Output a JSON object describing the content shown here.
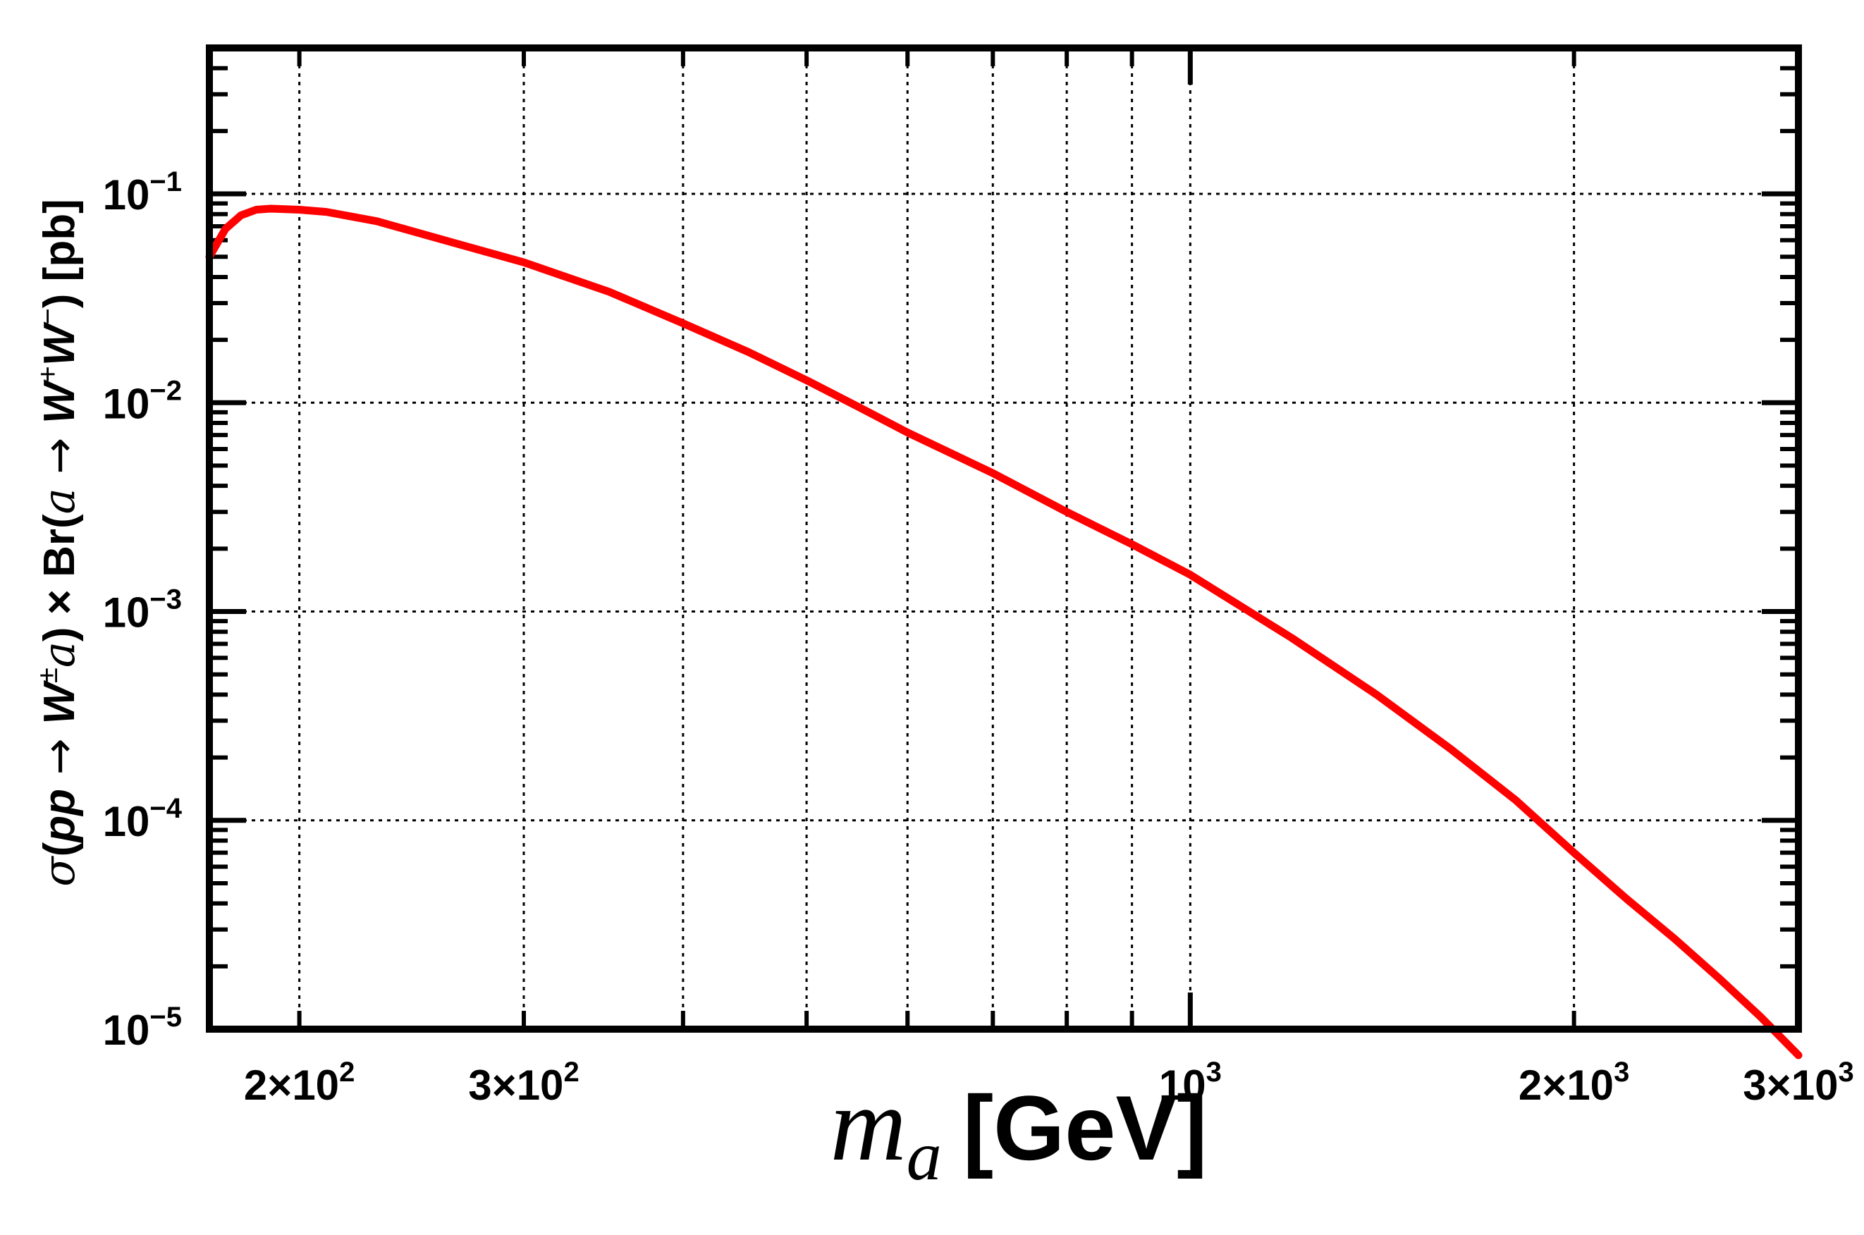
{
  "chart_data": {
    "type": "line",
    "title": "",
    "xlabel": "m_a [GeV]",
    "xlabel_parts": {
      "symbol": "m",
      "subscript": "a",
      "unit": "[GeV]"
    },
    "ylabel": "σ(pp → W±a) × Br(a → W+W−) [pb]",
    "ylabel_parts": {
      "sigma": "σ",
      "open_paren": "(",
      "pp": "pp",
      "arrow1": " → ",
      "W1": "W",
      "pm": "±",
      "a1": "a",
      "close_paren": ")",
      "times_br": " × Br(",
      "a2": "a",
      "arrow2": " → ",
      "W2": "W",
      "plus": "+",
      "W3": "W",
      "minus": "−",
      "unit": ") [pb]"
    },
    "xscale": "log",
    "yscale": "log",
    "xlim": [
      170,
      3000
    ],
    "ylim": [
      1e-05,
      0.5
    ],
    "grid": true,
    "line_color": "#ff0000",
    "x_ticks": [
      {
        "value": 200,
        "base": "2×10",
        "exp": "2"
      },
      {
        "value": 300,
        "base": "3×10",
        "exp": "2"
      },
      {
        "value": 1000,
        "base": "10",
        "exp": "3"
      },
      {
        "value": 2000,
        "base": "2×10",
        "exp": "3"
      },
      {
        "value": 3000,
        "base": "3×10",
        "exp": "3"
      }
    ],
    "y_ticks": [
      {
        "value": 0.1,
        "base": "10",
        "exp": "−1"
      },
      {
        "value": 0.01,
        "base": "10",
        "exp": "−2"
      },
      {
        "value": 0.001,
        "base": "10",
        "exp": "−3"
      },
      {
        "value": 0.0001,
        "base": "10",
        "exp": "−4"
      },
      {
        "value": 1e-05,
        "base": "10",
        "exp": "−5"
      }
    ],
    "x_gridlines": [
      200,
      300,
      400,
      500,
      600,
      700,
      800,
      900,
      1000,
      2000
    ],
    "y_gridlines": [
      0.1,
      0.01,
      0.001,
      0.0001
    ],
    "series": [
      {
        "x": [
          170,
          175,
          180,
          185,
          190,
          200,
          210,
          230,
          260,
          300,
          350,
          400,
          450,
          500,
          550,
          600,
          700,
          800,
          900,
          1000,
          1200,
          1400,
          1600,
          1800,
          2000,
          2200,
          2400,
          2600,
          2800,
          3000
        ],
        "y": [
          0.05,
          0.068,
          0.079,
          0.084,
          0.085,
          0.084,
          0.082,
          0.074,
          0.06,
          0.047,
          0.034,
          0.024,
          0.0175,
          0.0128,
          0.0095,
          0.0072,
          0.0046,
          0.003,
          0.0021,
          0.0015,
          0.00075,
          0.0004,
          0.00022,
          0.000125,
          7e-05,
          4.2e-05,
          2.7e-05,
          1.75e-05,
          1.15e-05,
          7.5e-06
        ]
      }
    ]
  }
}
